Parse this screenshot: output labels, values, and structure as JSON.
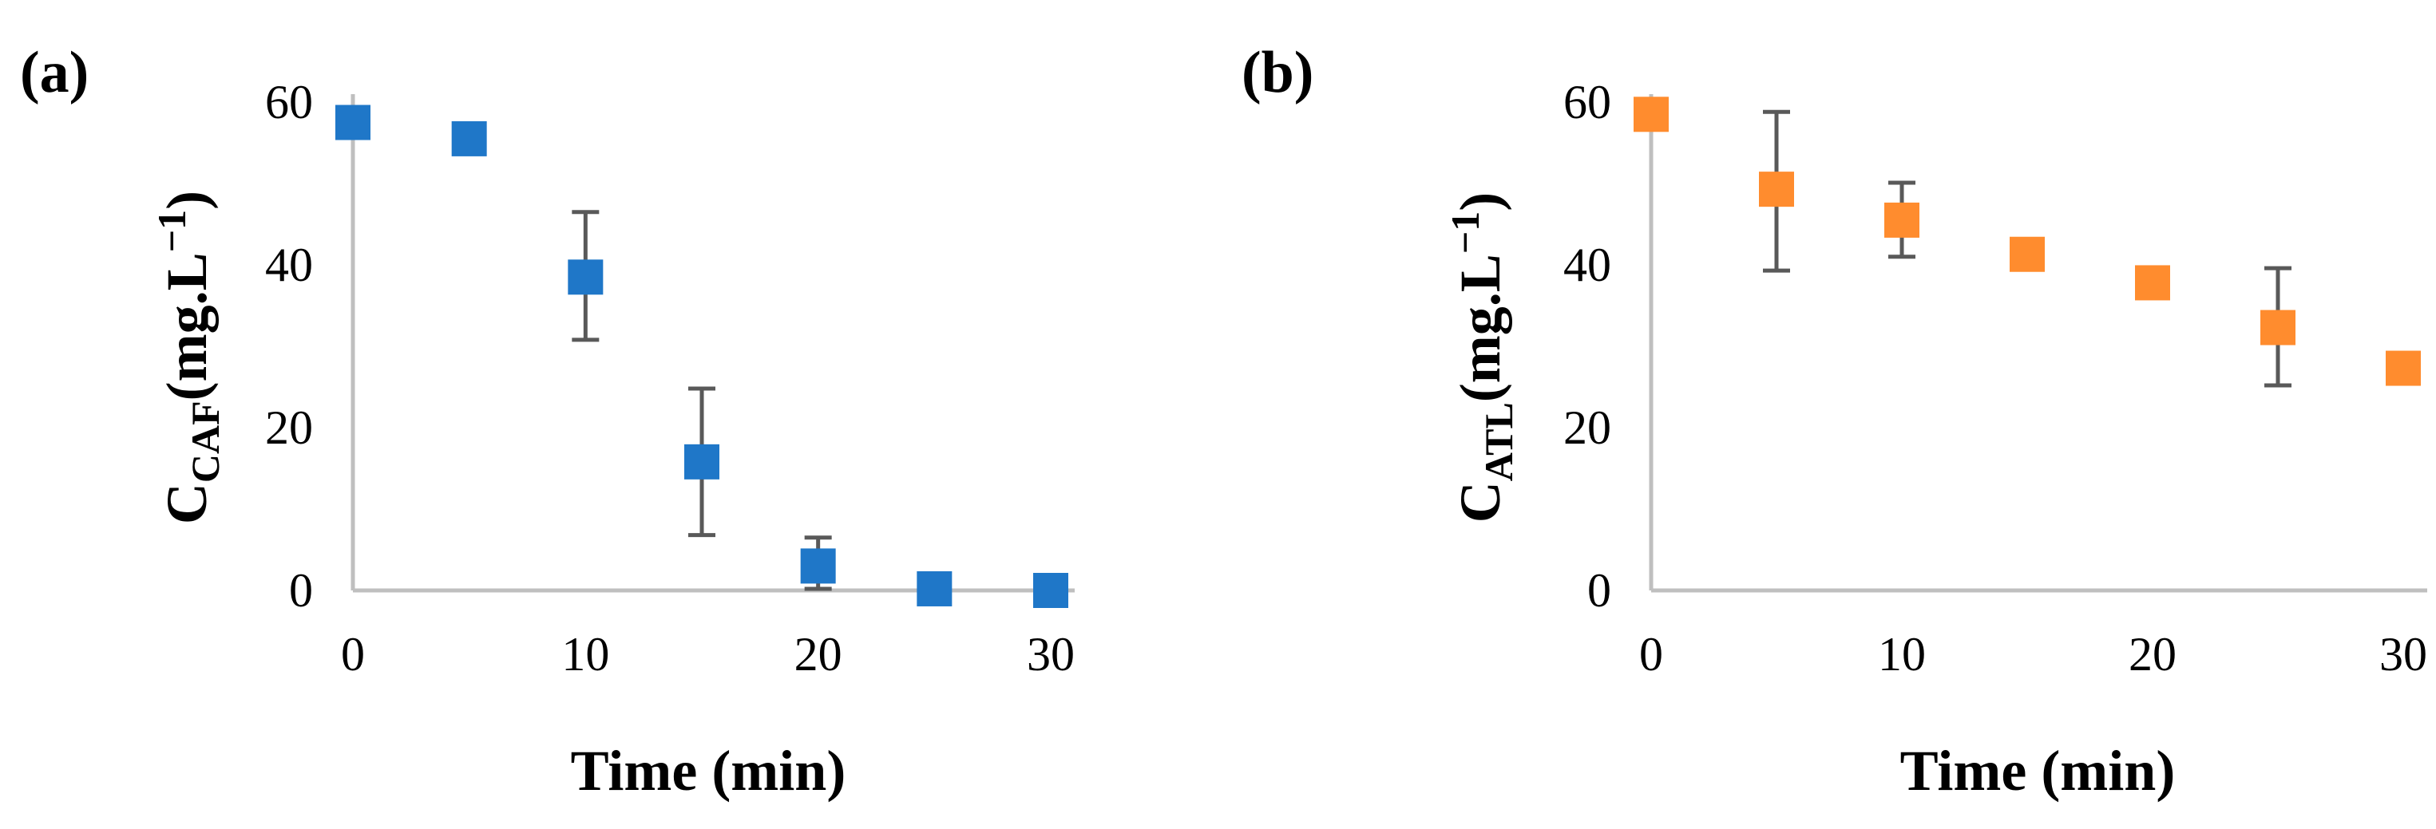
{
  "colors": {
    "series_a": "#1f77c8",
    "series_b": "#ff8c2e",
    "axis": "#bfbfbf",
    "error_bar": "#595959"
  },
  "chart_data": [
    {
      "type": "scatter",
      "panel_label": "(a)",
      "xlabel": "Time (min)",
      "ylabel": {
        "symbol": "C",
        "subscript": "CAF",
        "unit": "(mg.L",
        "unit_sup": "−1",
        "unit_close": ")"
      },
      "x_ticks": [
        "0",
        "10",
        "20",
        "30"
      ],
      "y_ticks": [
        "0",
        "20",
        "40",
        "60"
      ],
      "xlim": [
        0,
        30
      ],
      "ylim": [
        0,
        60
      ],
      "grid": false,
      "legend": "none",
      "marker": "square",
      "series": [
        {
          "x": [
            0,
            5,
            10,
            15,
            20,
            25,
            30
          ],
          "y": [
            57.5,
            55.5,
            38.5,
            15.8,
            3.0,
            0.2,
            0.0
          ],
          "error": [
            null,
            null,
            [
              30.8,
              46.5
            ],
            [
              6.8,
              24.8
            ],
            [
              0.2,
              6.5
            ],
            null,
            null
          ]
        }
      ]
    },
    {
      "type": "scatter",
      "panel_label": "(b)",
      "xlabel": "Time (min)",
      "ylabel": {
        "symbol": "C",
        "subscript": "ATL",
        "unit": "(mg.L",
        "unit_sup": "−1",
        "unit_close": ")"
      },
      "x_ticks": [
        "0",
        "10",
        "20",
        "30"
      ],
      "y_ticks": [
        "0",
        "20",
        "40",
        "60"
      ],
      "xlim": [
        0,
        30
      ],
      "ylim": [
        0,
        60
      ],
      "grid": false,
      "legend": "none",
      "marker": "square",
      "series": [
        {
          "x": [
            0,
            5,
            10,
            15,
            20,
            25,
            30
          ],
          "y": [
            58.5,
            49.3,
            45.5,
            41.3,
            37.8,
            32.3,
            27.3
          ],
          "error": [
            null,
            [
              39.3,
              58.8
            ],
            [
              41.0,
              50.1
            ],
            null,
            null,
            [
              25.2,
              39.6
            ],
            null
          ]
        }
      ]
    }
  ]
}
